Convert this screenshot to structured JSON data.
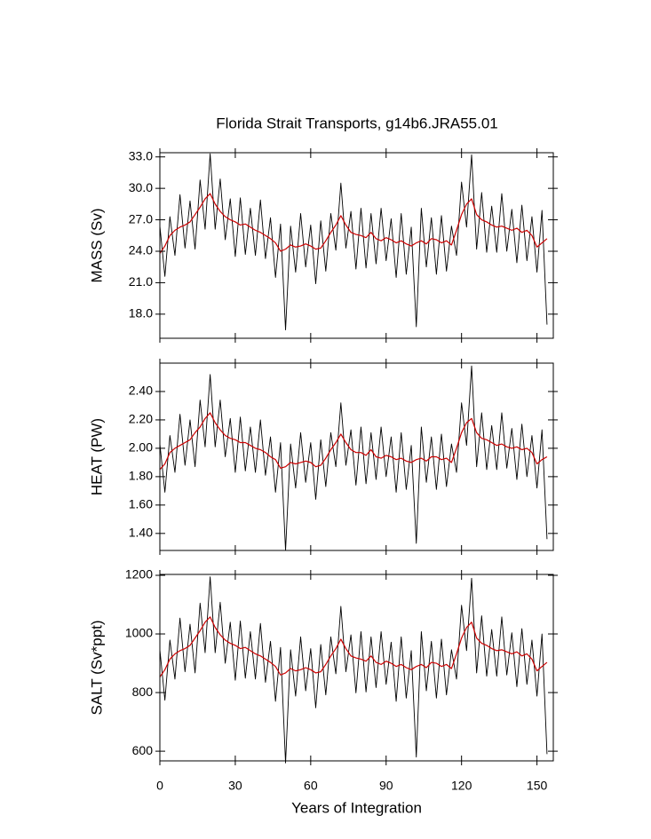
{
  "chart_data": [
    {
      "type": "line",
      "title": "Florida Strait Transports, g14b6.JRA55.01",
      "ylabel": "MASS (Sv)",
      "x": [
        0,
        2,
        4,
        6,
        8,
        10,
        12,
        14,
        16,
        18,
        20,
        22,
        24,
        26,
        28,
        30,
        32,
        34,
        36,
        38,
        40,
        42,
        44,
        46,
        48,
        50,
        52,
        54,
        56,
        58,
        60,
        62,
        64,
        66,
        68,
        70,
        72,
        74,
        76,
        78,
        80,
        82,
        84,
        86,
        88,
        90,
        92,
        94,
        96,
        98,
        100,
        102,
        104,
        106,
        108,
        110,
        112,
        114,
        116,
        118,
        120,
        122,
        124,
        126,
        128,
        130,
        132,
        134,
        136,
        138,
        140,
        142,
        144,
        146,
        148,
        150,
        152,
        154
      ],
      "series": [
        {
          "color": "#000000",
          "values": [
            26.4,
            21.6,
            27.3,
            23.6,
            29.4,
            24.3,
            28.8,
            24.2,
            30.8,
            26.1,
            33.3,
            26.1,
            30.9,
            25.1,
            29.0,
            23.5,
            29.1,
            23.7,
            28.1,
            23.6,
            28.9,
            23.3,
            27.2,
            21.5,
            26.6,
            16.5,
            26.4,
            22.0,
            27.6,
            22.5,
            26.5,
            20.9,
            26.9,
            22.1,
            27.6,
            24.1,
            30.5,
            24.3,
            27.8,
            22.3,
            28.1,
            22.4,
            27.6,
            22.8,
            28.1,
            23.1,
            27.1,
            21.5,
            27.6,
            21.8,
            26.3,
            16.8,
            28.1,
            22.5,
            27.2,
            21.8,
            27.4,
            22.1,
            26.4,
            23.6,
            30.6,
            26.3,
            33.2,
            24.2,
            29.6,
            23.9,
            28.3,
            23.9,
            29.5,
            24.0,
            28.0,
            22.9,
            28.4,
            23.1,
            27.3,
            22.0,
            27.9,
            17.0
          ]
        },
        {
          "color": "#cc0000",
          "values": [
            23.8,
            24.5,
            25.5,
            26,
            26.3,
            26.5,
            26.8,
            27.5,
            28.2,
            29,
            29.5,
            28.5,
            27.8,
            27.3,
            27,
            26.8,
            26.5,
            26.6,
            26.3,
            26,
            25.8,
            25.5,
            25.2,
            24.8,
            24,
            24.2,
            24.6,
            24.4,
            24.5,
            24.7,
            24.5,
            24.2,
            24.3,
            25,
            25.8,
            26.5,
            27.4,
            26.5,
            25.8,
            25.6,
            25.5,
            25.3,
            25.8,
            25.2,
            25,
            25.3,
            25.1,
            24.8,
            25,
            24.7,
            24.5,
            24.8,
            25,
            24.7,
            25.2,
            25.1,
            24.8,
            25,
            24.6,
            26,
            27.5,
            28.5,
            29,
            27.5,
            27,
            26.8,
            26.5,
            26.3,
            26.4,
            26.2,
            26,
            26.2,
            25.8,
            26,
            25.5,
            24.4,
            24.8,
            25.2
          ]
        }
      ],
      "xlim": [
        0,
        156.5
      ],
      "xticks": [
        0,
        30,
        60,
        90,
        120,
        150
      ],
      "ylim": [
        15.7,
        33.4
      ],
      "yticks": [
        {
          "value": 18,
          "label": "18.0"
        },
        {
          "value": 21,
          "label": "21.0"
        },
        {
          "value": 24,
          "label": "24.0"
        },
        {
          "value": 27,
          "label": "27.0"
        },
        {
          "value": 30,
          "label": "30.0"
        },
        {
          "value": 33,
          "label": "33.0"
        }
      ]
    },
    {
      "type": "line",
      "ylabel": "HEAT (PW)",
      "x": [
        0,
        2,
        4,
        6,
        8,
        10,
        12,
        14,
        16,
        18,
        20,
        22,
        24,
        26,
        28,
        30,
        32,
        34,
        36,
        38,
        40,
        42,
        44,
        46,
        48,
        50,
        52,
        54,
        56,
        58,
        60,
        62,
        64,
        66,
        68,
        70,
        72,
        74,
        76,
        78,
        80,
        82,
        84,
        86,
        88,
        90,
        92,
        94,
        96,
        98,
        100,
        102,
        104,
        106,
        108,
        110,
        112,
        114,
        116,
        118,
        120,
        122,
        124,
        126,
        128,
        130,
        132,
        134,
        136,
        138,
        140,
        142,
        144,
        146,
        148,
        150,
        152,
        154
      ],
      "series": [
        {
          "color": "#000000",
          "values": [
            2.03,
            1.69,
            2.09,
            1.83,
            2.24,
            1.88,
            2.2,
            1.87,
            2.34,
            2.01,
            2.52,
            2.01,
            2.34,
            1.94,
            2.21,
            1.83,
            2.22,
            1.84,
            2.15,
            1.83,
            2.2,
            1.81,
            2.08,
            1.69,
            2.04,
            1.28,
            2.03,
            1.72,
            2.11,
            1.76,
            2.04,
            1.64,
            2.06,
            1.73,
            2.11,
            1.87,
            2.32,
            1.88,
            2.13,
            1.74,
            2.15,
            1.75,
            2.11,
            1.78,
            2.15,
            1.8,
            2.08,
            1.69,
            2.11,
            1.71,
            2.02,
            1.33,
            2.15,
            1.76,
            2.08,
            1.71,
            2.1,
            1.73,
            2.03,
            1.83,
            2.32,
            2.02,
            2.58,
            1.87,
            2.25,
            1.85,
            2.16,
            1.85,
            2.25,
            1.86,
            2.14,
            1.78,
            2.17,
            1.8,
            2.09,
            1.72,
            2.13,
            1.36
          ]
        },
        {
          "color": "#cc0000",
          "values": [
            1.85,
            1.89,
            1.97,
            2.0,
            2.02,
            2.04,
            2.06,
            2.11,
            2.15,
            2.21,
            2.25,
            2.18,
            2.13,
            2.09,
            2.07,
            2.06,
            2.04,
            2.04,
            2.02,
            2.0,
            1.99,
            1.97,
            1.94,
            1.92,
            1.86,
            1.87,
            1.9,
            1.89,
            1.9,
            1.91,
            1.9,
            1.87,
            1.88,
            1.93,
            1.99,
            2.04,
            2.1,
            2.04,
            1.99,
            1.97,
            1.97,
            1.95,
            1.99,
            1.94,
            1.93,
            1.95,
            1.94,
            1.92,
            1.93,
            1.91,
            1.9,
            1.92,
            1.93,
            1.91,
            1.94,
            1.94,
            1.92,
            1.93,
            1.9,
            2.0,
            2.11,
            2.18,
            2.21,
            2.11,
            2.07,
            2.06,
            2.04,
            2.02,
            2.03,
            2.01,
            2.0,
            2.01,
            1.99,
            2.0,
            1.97,
            1.89,
            1.92,
            1.94
          ]
        }
      ],
      "xlim": [
        0,
        156.5
      ],
      "xticks": [
        0,
        30,
        60,
        90,
        120,
        150
      ],
      "ylim": [
        1.28,
        2.6
      ],
      "yticks": [
        {
          "value": 1.4,
          "label": "1.40"
        },
        {
          "value": 1.6,
          "label": "1.60"
        },
        {
          "value": 1.8,
          "label": "1.80"
        },
        {
          "value": 2,
          "label": "2.00"
        },
        {
          "value": 2.2,
          "label": "2.20"
        },
        {
          "value": 2.4,
          "label": "2.40"
        }
      ]
    },
    {
      "type": "line",
      "ylabel": "SALT (Sv*ppt)",
      "xlabel": "Years of Integration",
      "x": [
        0,
        2,
        4,
        6,
        8,
        10,
        12,
        14,
        16,
        18,
        20,
        22,
        24,
        26,
        28,
        30,
        32,
        34,
        36,
        38,
        40,
        42,
        44,
        46,
        48,
        50,
        52,
        54,
        56,
        58,
        60,
        62,
        64,
        66,
        68,
        70,
        72,
        74,
        76,
        78,
        80,
        82,
        84,
        86,
        88,
        90,
        92,
        94,
        96,
        98,
        100,
        102,
        104,
        106,
        108,
        110,
        112,
        114,
        116,
        118,
        120,
        122,
        124,
        126,
        128,
        130,
        132,
        134,
        136,
        138,
        140,
        142,
        144,
        146,
        148,
        150,
        152,
        154
      ],
      "series": [
        {
          "color": "#000000",
          "values": [
            946,
            774,
            979,
            846,
            1054,
            871,
            1033,
            867,
            1105,
            936,
            1195,
            936,
            1108,
            900,
            1040,
            842,
            1044,
            849,
            1008,
            846,
            1036,
            835,
            975,
            770,
            954,
            560,
            946,
            788,
            990,
            806,
            950,
            748,
            964,
            792,
            990,
            864,
            1094,
            871,
            997,
            799,
            1008,
            802,
            990,
            817,
            1008,
            828,
            972,
            770,
            990,
            781,
            943,
            580,
            1008,
            806,
            975,
            781,
            982,
            792,
            946,
            846,
            1098,
            943,
            1190,
            867,
            1062,
            856,
            1015,
            856,
            1058,
            860,
            1004,
            820,
            1018,
            828,
            979,
            788,
            1000,
            590
          ]
        },
        {
          "color": "#cc0000",
          "values": [
            853,
            878,
            914,
            932,
            943,
            950,
            961,
            986,
            1011,
            1040,
            1058,
            1022,
            997,
            979,
            968,
            961,
            950,
            954,
            943,
            932,
            925,
            914,
            903,
            889,
            860,
            867,
            882,
            874,
            878,
            885,
            878,
            867,
            871,
            896,
            925,
            950,
            982,
            950,
            925,
            918,
            914,
            907,
            925,
            903,
            896,
            907,
            900,
            889,
            896,
            885,
            878,
            889,
            896,
            885,
            903,
            900,
            889,
            896,
            882,
            932,
            986,
            1022,
            1040,
            986,
            968,
            961,
            950,
            943,
            946,
            939,
            932,
            939,
            925,
            932,
            914,
            874,
            889,
            903
          ]
        }
      ],
      "xlim": [
        0,
        156.5
      ],
      "xticks": [
        0,
        30,
        60,
        90,
        120,
        150
      ],
      "ylim": [
        567,
        1203
      ],
      "yticks": [
        600,
        800,
        1000,
        1200
      ]
    }
  ]
}
